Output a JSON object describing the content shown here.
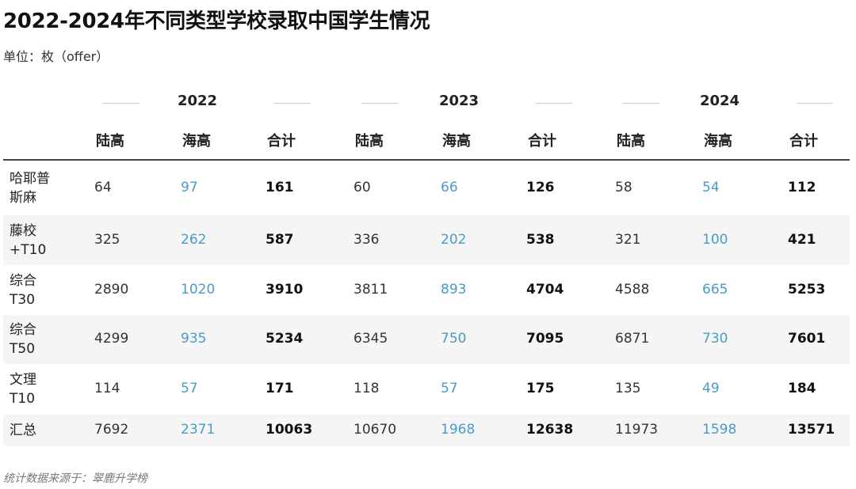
{
  "title": "2022-2024年不同类型学校录取中国学生情况",
  "unit": "单位：枚（offer）",
  "source": "统计数据来源于：翠鹿升学榜",
  "chart_data": {
    "type": "table",
    "years": [
      "2022",
      "2023",
      "2024"
    ],
    "sub_columns": [
      "陆高",
      "海高",
      "合计"
    ],
    "rows": [
      {
        "label": [
          "哈耶普",
          "斯麻"
        ],
        "values": [
          "64",
          "97",
          "161",
          "60",
          "66",
          "126",
          "58",
          "54",
          "112"
        ]
      },
      {
        "label": [
          "藤校",
          "+T10"
        ],
        "values": [
          "325",
          "262",
          "587",
          "336",
          "202",
          "538",
          "321",
          "100",
          "421"
        ]
      },
      {
        "label": [
          "综合",
          "T30"
        ],
        "values": [
          "2890",
          "1020",
          "3910",
          "3811",
          "893",
          "4704",
          "4588",
          "665",
          "5253"
        ]
      },
      {
        "label": [
          "综合",
          "T50"
        ],
        "values": [
          "4299",
          "935",
          "5234",
          "6345",
          "750",
          "7095",
          "6871",
          "730",
          "7601"
        ]
      },
      {
        "label": [
          "文理",
          "T10"
        ],
        "values": [
          "114",
          "57",
          "171",
          "118",
          "57",
          "175",
          "135",
          "49",
          "184"
        ]
      },
      {
        "label": [
          "汇总"
        ],
        "values": [
          "7692",
          "2371",
          "10063",
          "10670",
          "1968",
          "12638",
          "11973",
          "1598",
          "13571"
        ]
      }
    ]
  }
}
